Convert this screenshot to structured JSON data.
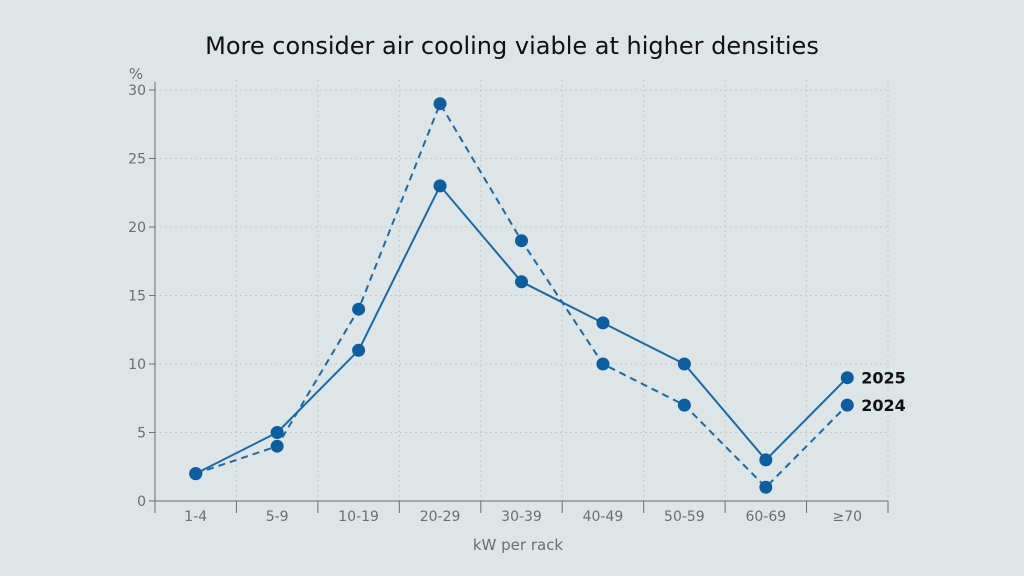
{
  "chart_data": {
    "type": "line",
    "title": "More consider air cooling viable at higher densities",
    "xlabel": "kW per rack",
    "ylabel": "%",
    "categories": [
      "1-4",
      "5-9",
      "10-19",
      "20-29",
      "30-39",
      "40-49",
      "50-59",
      "60-69",
      "≥70"
    ],
    "ylim": [
      0,
      30
    ],
    "yticks": [
      0,
      5,
      10,
      15,
      20,
      25,
      30
    ],
    "grid": true,
    "legend_placement": "right, at line ends",
    "series": [
      {
        "name": "2025",
        "style": "solid",
        "values": [
          2,
          5,
          11,
          23,
          16,
          13,
          10,
          3,
          9
        ]
      },
      {
        "name": "2024",
        "style": "dashed",
        "values": [
          2,
          4,
          14,
          29,
          19,
          10,
          7,
          1,
          7
        ]
      }
    ],
    "colors": {
      "line": "#1b6aa5",
      "marker": "#0e5e9e",
      "grid": "#c2cacc",
      "axis": "#6b6f71",
      "background": "#dde5e7"
    }
  }
}
